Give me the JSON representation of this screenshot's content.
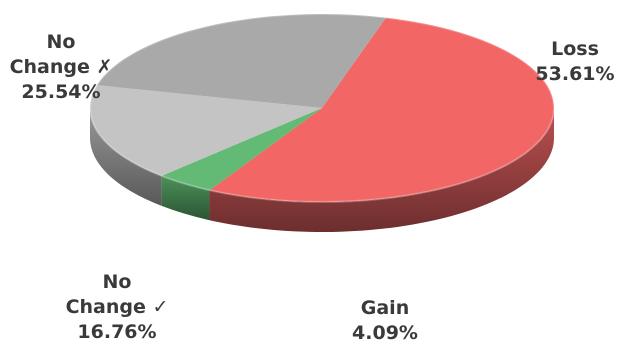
{
  "chart_data": {
    "type": "pie",
    "style": "3d",
    "slices": [
      {
        "name": "Loss",
        "value": 53.61,
        "label_lines": [
          "Loss"
        ],
        "value_label": "53.61%",
        "color": "#f26666"
      },
      {
        "name": "Gain",
        "value": 4.09,
        "label_lines": [
          "Gain"
        ],
        "value_label": "4.09%",
        "color": "#62ba74"
      },
      {
        "name": "No Change ✓",
        "value": 16.76,
        "label_lines": [
          "No",
          "Change ✓"
        ],
        "value_label": "16.76%",
        "color": "#c4c4c4"
      },
      {
        "name": "No Change ✗",
        "value": 25.54,
        "label_lines": [
          "No",
          "Change ✗"
        ],
        "value_label": "25.54%",
        "color": "#a9a9a9"
      }
    ]
  }
}
